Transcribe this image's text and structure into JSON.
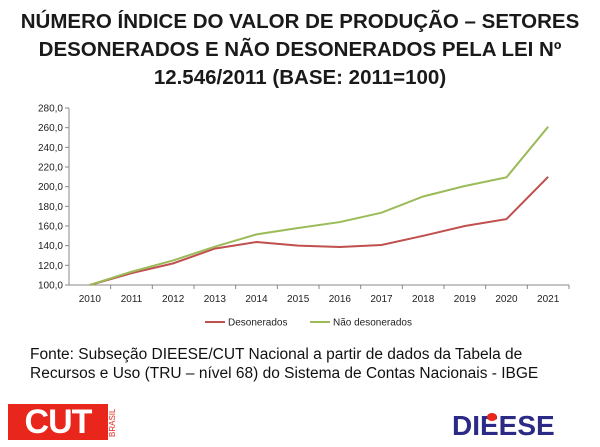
{
  "title_lines": [
    "NÚMERO ÍNDICE DO VALOR DE PRODUÇÃO – SETORES",
    "DESONERADOS E NÃO DESONERADOS PELA LEI Nº",
    "12.546/2011 (BASE: 2011=100)"
  ],
  "source_lines": [
    "Fonte: Subseção DIEESE/CUT Nacional a partir de dados da Tabela de",
    "Recursos e Uso (TRU – nível 68) do Sistema de Contas Nacionais - IBGE"
  ],
  "logos": {
    "cut": "CUT",
    "brasil": "BRASIL",
    "dieese": "DIEESE"
  },
  "chart_data": {
    "type": "line",
    "title": "NÚMERO ÍNDICE DO VALOR DE PRODUÇÃO – SETORES DESONERADOS E NÃO DESONERADOS PELA LEI Nº 12.546/2011 (BASE: 2011=100)",
    "categories": [
      "2010",
      "2011",
      "2012",
      "2013",
      "2014",
      "2015",
      "2016",
      "2017",
      "2018",
      "2019",
      "2020",
      "2021"
    ],
    "ylim": [
      100,
      280
    ],
    "yticks": [
      "100,0",
      "120,0",
      "140,0",
      "160,0",
      "180,0",
      "200,0",
      "220,0",
      "240,0",
      "260,0",
      "280,0"
    ],
    "legend_position": "bottom",
    "series": [
      {
        "name": "Desonerados",
        "color": "#c0504d",
        "values": [
          100,
          112,
          122,
          137,
          143.7,
          140,
          138.7,
          140.7,
          150,
          160,
          167,
          210
        ]
      },
      {
        "name": "Não desonerados",
        "color": "#9bbb59",
        "values": [
          100,
          113.5,
          125,
          139,
          151.5,
          158,
          164,
          173.5,
          190,
          200.7,
          209.5,
          261
        ]
      }
    ]
  }
}
